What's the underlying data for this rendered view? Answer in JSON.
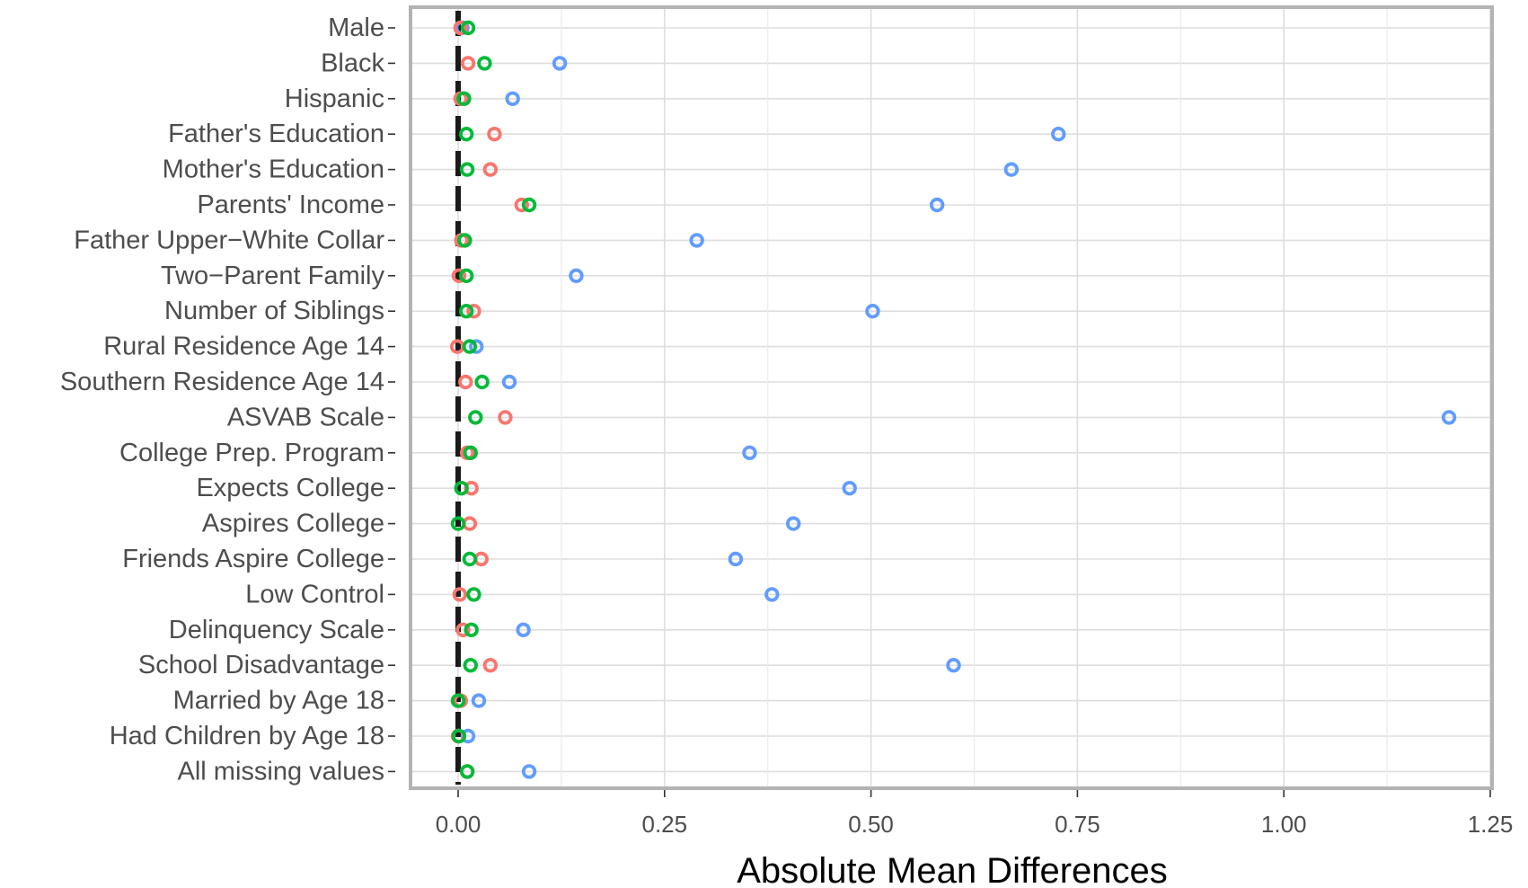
{
  "chart_data": {
    "type": "scatter",
    "title": "",
    "xlabel": "Absolute Mean Differences",
    "ylabel": "",
    "xlim": [
      -0.057,
      1.25
    ],
    "x_ticks": [
      0.0,
      0.25,
      0.5,
      0.75,
      1.0,
      1.25
    ],
    "x_tick_labels": [
      "0.00",
      "0.25",
      "0.50",
      "0.75",
      "1.00",
      "1.25"
    ],
    "grid": true,
    "legend": "none",
    "reference_line": {
      "x": 0,
      "style": "dashed",
      "color": "#1a1a1a"
    },
    "categories": [
      "Male",
      "Black",
      "Hispanic",
      "Father's Education",
      "Mother's Education",
      "Parents' Income",
      "Father Upper−White Collar",
      "Two−Parent Family",
      "Number of Siblings",
      "Rural Residence Age 14",
      "Southern Residence Age 14",
      "ASVAB Scale",
      "College Prep. Program",
      "Expects College",
      "Aspires College",
      "Friends Aspire College",
      "Low Control",
      "Delinquency Scale",
      "School Disadvantage",
      "Married by Age 18",
      "Had Children by Age 18",
      "All missing values"
    ],
    "series": [
      {
        "color": "#619cff",
        "values": [
          0.005,
          0.123,
          0.066,
          0.727,
          0.67,
          0.58,
          0.289,
          0.143,
          0.502,
          0.022,
          0.062,
          1.2,
          0.353,
          0.474,
          0.406,
          0.336,
          0.38,
          0.079,
          0.6,
          0.025,
          0.012,
          0.086
        ]
      },
      {
        "color": "#f8766d",
        "values": [
          0.003,
          0.012,
          0.003,
          0.044,
          0.039,
          0.077,
          0.004,
          0.001,
          0.019,
          -0.001,
          0.009,
          0.057,
          0.011,
          0.016,
          0.014,
          0.028,
          0.002,
          0.006,
          0.039,
          0.003,
          0.0,
          0.011
        ]
      },
      {
        "color": "#00ba38",
        "values": [
          0.012,
          0.032,
          0.007,
          0.01,
          0.011,
          0.086,
          0.008,
          0.01,
          0.01,
          0.014,
          0.029,
          0.021,
          0.015,
          0.004,
          0.0,
          0.014,
          0.019,
          0.016,
          0.015,
          0.0,
          0.001,
          0.011
        ]
      }
    ]
  }
}
